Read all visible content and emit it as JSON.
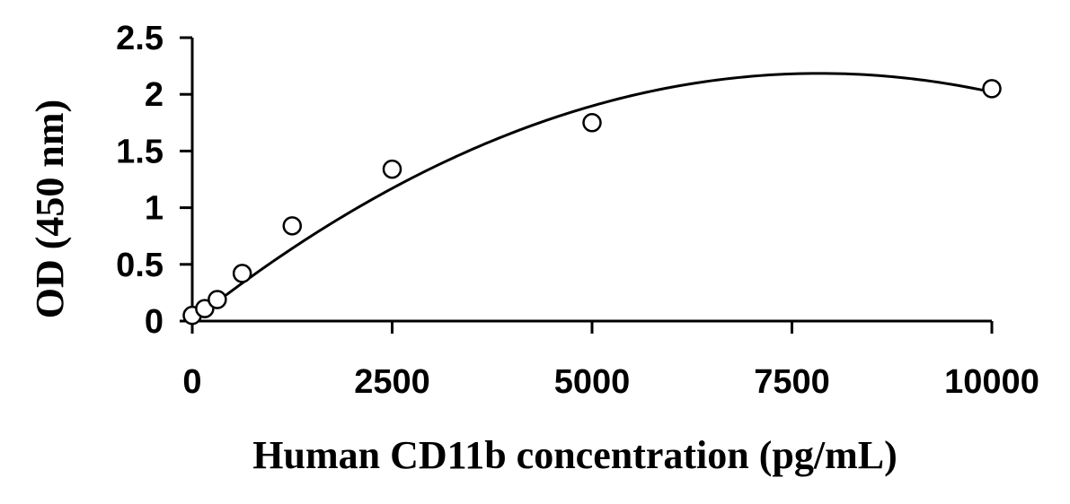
{
  "chart_data": {
    "type": "scatter",
    "title": "",
    "xlabel": "Human CD11b concentration (pg/mL)",
    "ylabel": "OD (450 nm)",
    "xlim": [
      0,
      10000
    ],
    "ylim": [
      0,
      2.5
    ],
    "x_ticks": [
      0,
      2500,
      5000,
      7500,
      10000
    ],
    "x_tick_labels": [
      "0",
      "2500",
      "5000",
      "7500",
      "10000"
    ],
    "y_ticks": [
      0,
      0.5,
      1,
      1.5,
      2,
      2.5
    ],
    "y_tick_labels": [
      "0",
      "0.5",
      "1",
      "1.5",
      "2",
      "2.5"
    ],
    "grid": false,
    "legend": "none",
    "series": [
      {
        "marker": "open-circle",
        "x": [
          0,
          156,
          313,
          625,
          1250,
          2500,
          5000,
          10000
        ],
        "y": [
          0.05,
          0.11,
          0.19,
          0.42,
          0.84,
          1.34,
          1.75,
          2.05
        ]
      }
    ],
    "trendline": {
      "type": "polynomial",
      "order": 2,
      "x_range": [
        0,
        10000
      ],
      "coefficients": [
        0.0,
        0.000557,
        -3.55e-08
      ]
    },
    "colors": {
      "axis": "#000000",
      "marker_stroke": "#000000",
      "marker_fill": "#ffffff",
      "line": "#000000"
    }
  }
}
